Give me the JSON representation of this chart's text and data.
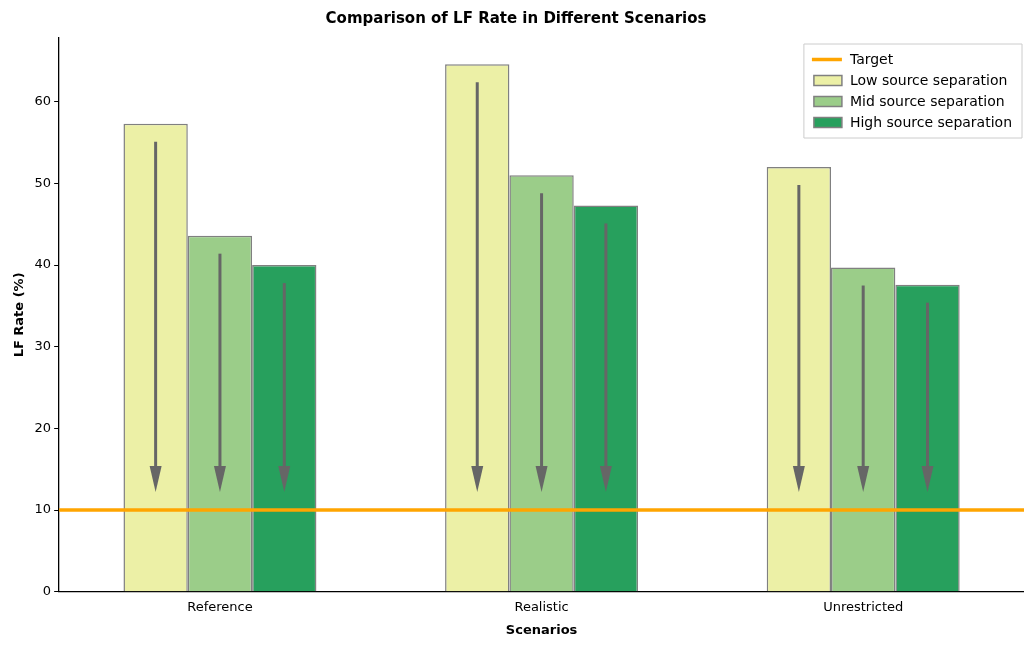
{
  "chart_data": {
    "type": "bar",
    "title": "Comparison of LF Rate in Different Scenarios",
    "xlabel": "Scenarios",
    "ylabel": "LF Rate (%)",
    "categories": [
      "Reference",
      "Realistic",
      "Unrestricted"
    ],
    "series": [
      {
        "name": "Low source separation",
        "color": "#ecf0a6",
        "values": [
          57.3,
          64.6,
          52.0
        ]
      },
      {
        "name": "Mid source separation",
        "color": "#9bcd89",
        "values": [
          43.6,
          51.0,
          39.7
        ]
      },
      {
        "name": "High source separation",
        "color": "#27a05d",
        "values": [
          40.0,
          47.3,
          37.6
        ]
      }
    ],
    "ylim": [
      0,
      67.8
    ],
    "yticks": [
      0,
      10,
      20,
      30,
      40,
      50,
      60
    ],
    "ref_lines": [
      {
        "axis": "y",
        "value": 10,
        "label": "Target",
        "color": "#ffa500",
        "line_style": "solid"
      }
    ],
    "legend": "top right",
    "grid": false
  }
}
